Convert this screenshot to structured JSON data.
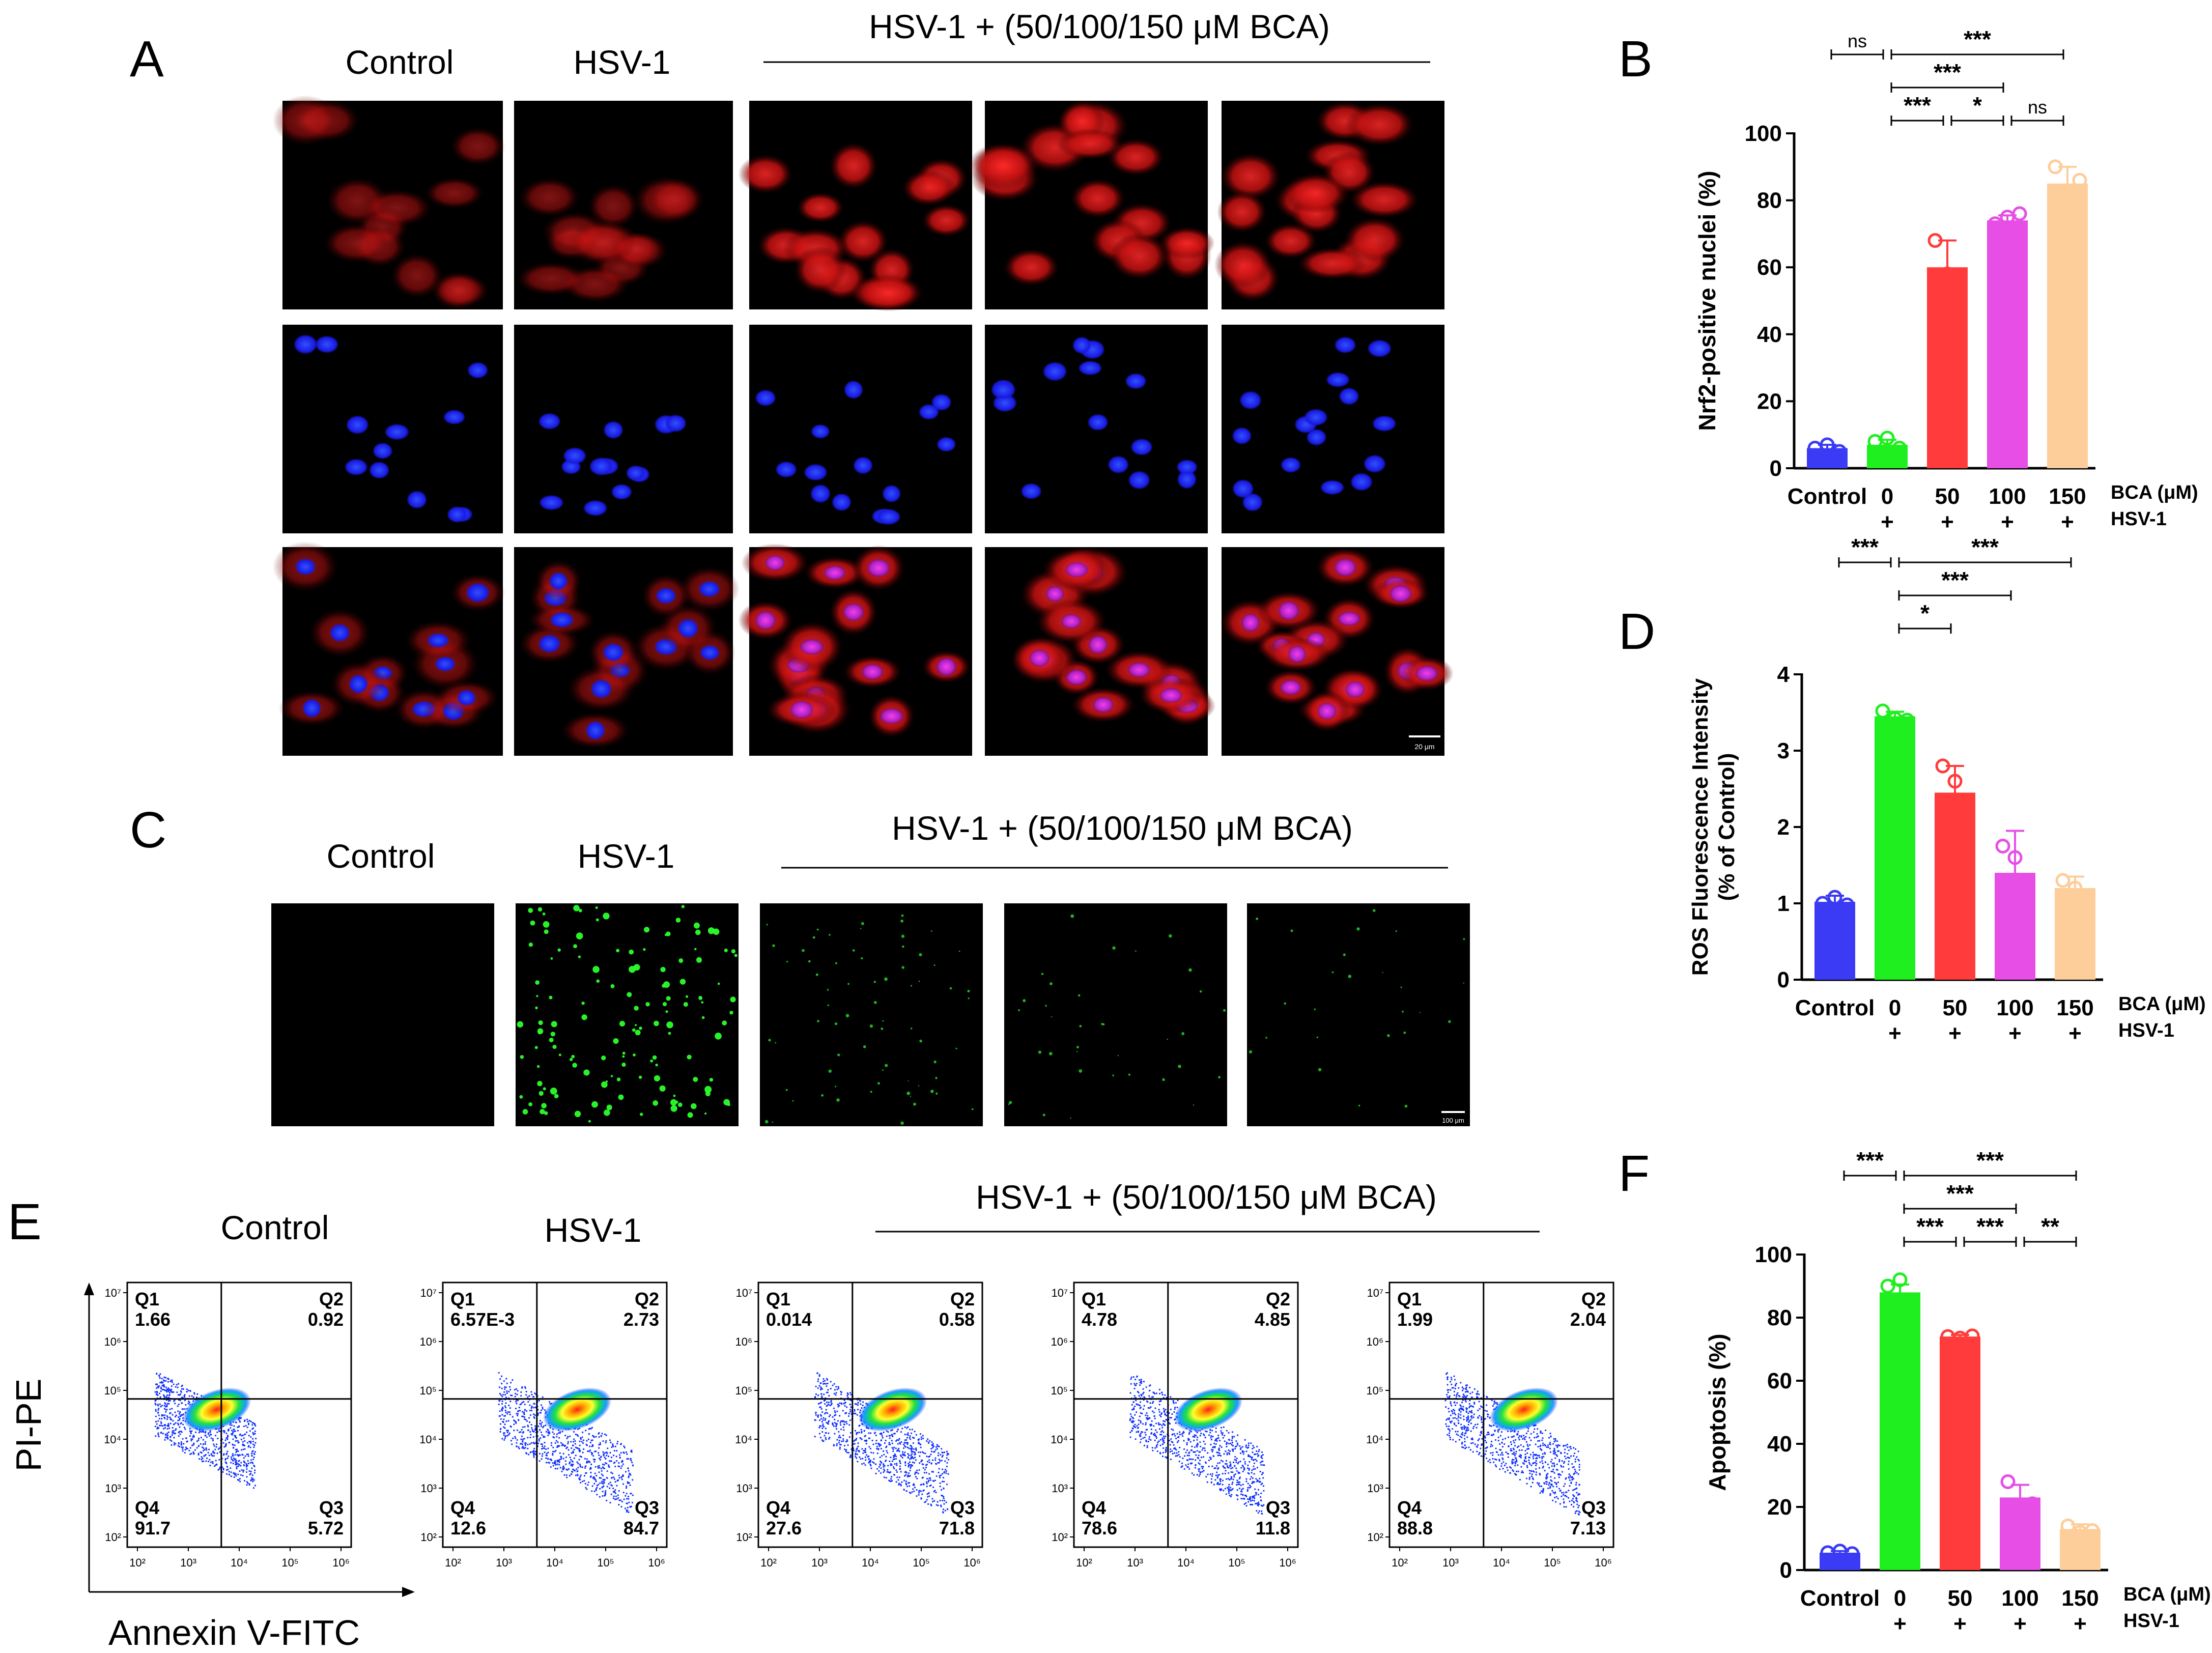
{
  "panels": {
    "A": {
      "letter": "A",
      "col_labels": [
        "Control",
        "HSV-1"
      ],
      "group_label": "HSV-1 + (50/100/150 μM BCA)",
      "scale_bar": "20 μm"
    },
    "C": {
      "letter": "C",
      "col_labels": [
        "Control",
        "HSV-1"
      ],
      "group_label": "HSV-1 + (50/100/150 μM BCA)",
      "scale_bar": "100 μm"
    },
    "E": {
      "letter": "E",
      "col_labels": [
        "Control",
        "HSV-1"
      ],
      "group_label": "HSV-1 + (50/100/150 μM BCA)",
      "ylabel": "PI-PE",
      "xlabel": "Annexin V-FITC",
      "tick_labels": [
        "10²",
        "10³",
        "10⁴",
        "10⁵",
        "10⁶",
        "10⁷"
      ],
      "plots": [
        {
          "q1": "1.66",
          "q2": "0.92",
          "q3": "5.72",
          "q4": "91.7"
        },
        {
          "q1": "6.57E-3",
          "q2": "2.73",
          "q3": "84.7",
          "q4": "12.6"
        },
        {
          "q1": "0.014",
          "q2": "0.58",
          "q3": "71.8",
          "q4": "27.6"
        },
        {
          "q1": "4.78",
          "q2": "4.85",
          "q3": "11.8",
          "q4": "78.6"
        },
        {
          "q1": "1.99",
          "q2": "2.04",
          "q3": "7.13",
          "q4": "88.8"
        }
      ],
      "quadrant_names": [
        "Q1",
        "Q2",
        "Q3",
        "Q4"
      ]
    },
    "B": {
      "letter": "B"
    },
    "D": {
      "letter": "D"
    },
    "F": {
      "letter": "F"
    }
  },
  "colors": {
    "control": "#3b3bf5",
    "hsv": "#1fef1f",
    "bca50": "#ff3b3b",
    "bca100": "#e64ee6",
    "bca150": "#fdcd9a",
    "fluor_red": "#d01010",
    "fluor_blue": "#1a2aff",
    "fluor_green": "#2cff2c"
  },
  "chart_data": [
    {
      "id": "B",
      "type": "bar",
      "categories": [
        "Control",
        "0",
        "50",
        "100",
        "150"
      ],
      "row1_suffix": "BCA (μM)",
      "row2": [
        "",
        "+",
        "+",
        "+",
        "+"
      ],
      "row2_suffix": "HSV-1",
      "ylabel": "Nrf2-positive  nuclei (%)",
      "ylim": [
        0,
        100
      ],
      "yticks": [
        0,
        20,
        40,
        60,
        80,
        100
      ],
      "values": [
        6,
        7,
        60,
        74,
        85
      ],
      "errors": [
        1,
        1.5,
        8,
        1.5,
        5
      ],
      "points": [
        [
          6,
          7,
          5
        ],
        [
          8,
          9,
          6
        ],
        [
          68,
          58,
          52
        ],
        [
          73,
          75,
          76
        ],
        [
          90,
          79,
          86
        ]
      ],
      "significance": [
        {
          "from": 0,
          "to": 1,
          "label": "ns",
          "level": 3
        },
        {
          "from": 1,
          "to": 4,
          "label": "***",
          "level": 3
        },
        {
          "from": 1,
          "to": 3,
          "label": "***",
          "level": 2
        },
        {
          "from": 1,
          "to": 2,
          "label": "***",
          "level": 1
        },
        {
          "from": 2,
          "to": 3,
          "label": "*",
          "level": 1
        },
        {
          "from": 3,
          "to": 4,
          "label": "ns",
          "level": 1
        }
      ]
    },
    {
      "id": "D",
      "type": "bar",
      "categories": [
        "Control",
        "0",
        "50",
        "100",
        "150"
      ],
      "row1_suffix": "BCA (μM)",
      "row2": [
        "",
        "+",
        "+",
        "+",
        "+"
      ],
      "row2_suffix": "HSV-1",
      "ylabel": "ROS Fluorescence Intensity",
      "ylabel2": "(% of Control)",
      "ylim": [
        0,
        4
      ],
      "yticks": [
        0,
        1,
        2,
        3,
        4
      ],
      "values": [
        1.02,
        3.45,
        2.45,
        1.4,
        1.2
      ],
      "errors": [
        0.08,
        0.06,
        0.35,
        0.55,
        0.15
      ],
      "points": [
        [
          1.0,
          1.08,
          0.98
        ],
        [
          3.52,
          3.42,
          3.4
        ],
        [
          2.8,
          2.6,
          2.0
        ],
        [
          1.75,
          1.6,
          0.8
        ],
        [
          1.3,
          1.2,
          1.1
        ]
      ],
      "significance": [
        {
          "from": 0,
          "to": 1,
          "label": "***",
          "level": 4
        },
        {
          "from": 1,
          "to": 4,
          "label": "***",
          "level": 4
        },
        {
          "from": 1,
          "to": 3,
          "label": "***",
          "level": 3
        },
        {
          "from": 1,
          "to": 2,
          "label": "*",
          "level": 2
        }
      ]
    },
    {
      "id": "F",
      "type": "bar",
      "categories": [
        "Control",
        "0",
        "50",
        "100",
        "150"
      ],
      "row1_suffix": "BCA (μM)",
      "row2": [
        "",
        "+",
        "+",
        "+",
        "+"
      ],
      "row2_suffix": "HSV-1",
      "ylabel": "Apoptosis (%)",
      "ylim": [
        0,
        100
      ],
      "yticks": [
        0,
        20,
        40,
        60,
        80,
        100
      ],
      "values": [
        5.5,
        88,
        74,
        23,
        13
      ],
      "errors": [
        0.5,
        2.5,
        0.5,
        4,
        1.5
      ],
      "points": [
        [
          5.5,
          6,
          5.2
        ],
        [
          90,
          92,
          85
        ],
        [
          74,
          73.5,
          74.2
        ],
        [
          28,
          20,
          21
        ],
        [
          14,
          12,
          12.5
        ]
      ],
      "significance": [
        {
          "from": 0,
          "to": 1,
          "label": "***",
          "level": 3
        },
        {
          "from": 1,
          "to": 4,
          "label": "***",
          "level": 3
        },
        {
          "from": 1,
          "to": 3,
          "label": "***",
          "level": 2
        },
        {
          "from": 1,
          "to": 2,
          "label": "***",
          "level": 1
        },
        {
          "from": 2,
          "to": 3,
          "label": "***",
          "level": 1
        },
        {
          "from": 3,
          "to": 4,
          "label": "**",
          "level": 1
        }
      ]
    }
  ]
}
